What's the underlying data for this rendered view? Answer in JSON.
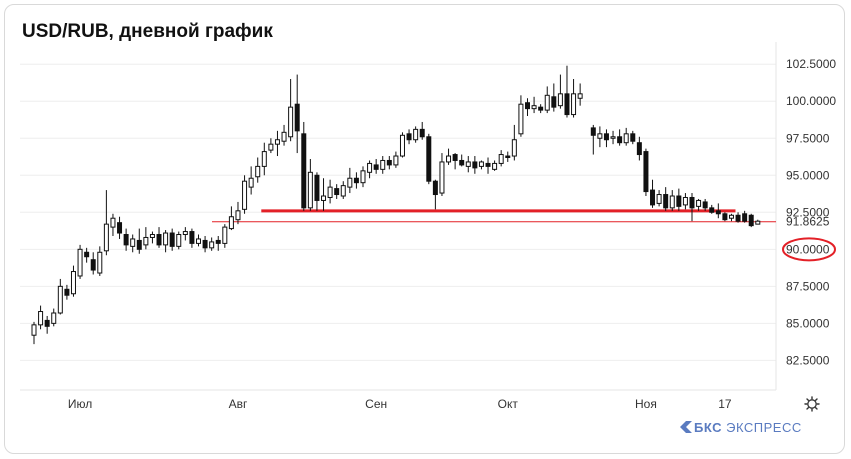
{
  "title": "USD/RUB, дневной график",
  "brand": {
    "icon": "bcs-logo-icon",
    "name": "БКС",
    "suffix": "ЭКСПРЕСС"
  },
  "settings_icon": "gear-icon",
  "colors": {
    "up": "#ffffff",
    "down": "#111111",
    "support": "#e32027",
    "grid": "#eeeeee"
  },
  "chart_data": {
    "type": "candlestick",
    "title": "USD/RUB, дневной график",
    "ylim": [
      80.5,
      104
    ],
    "y_ticks": [
      82.5,
      85,
      87.5,
      90,
      92.5,
      95,
      97.5,
      100,
      102.5
    ],
    "y_tick_labels": [
      "82.5000",
      "85.0000",
      "87.5000",
      "90.0000",
      "92.5000",
      "95.0000",
      "97.5000",
      "100.0000",
      "102.5000"
    ],
    "x_ticks": [
      {
        "label": "Июл",
        "index": 7
      },
      {
        "label": "Авг",
        "index": 31
      },
      {
        "label": "Сен",
        "index": 52
      },
      {
        "label": "Окт",
        "index": 72
      },
      {
        "label": "Ноя",
        "index": 93
      },
      {
        "label": "17",
        "index": 105
      }
    ],
    "price_label": "91.8625",
    "last_price": 91.8625,
    "highlighted_level": {
      "value": 90.0,
      "label": "90.0000"
    },
    "support_line": {
      "value": 92.6,
      "from_index": 35,
      "to_index": 106
    },
    "candles": [
      [
        84.2,
        84.9,
        83.6,
        85.1
      ],
      [
        84.9,
        85.8,
        84.6,
        86.2
      ],
      [
        85.2,
        84.8,
        84.3,
        85.5
      ],
      [
        85.0,
        85.7,
        84.8,
        86.0
      ],
      [
        85.7,
        87.5,
        85.6,
        88.0
      ],
      [
        87.3,
        86.9,
        86.6,
        87.6
      ],
      [
        87.0,
        88.5,
        86.8,
        88.9
      ],
      [
        88.2,
        90.0,
        88.0,
        90.3
      ],
      [
        89.8,
        89.5,
        89.1,
        90.1
      ],
      [
        89.3,
        88.6,
        88.3,
        89.8
      ],
      [
        88.4,
        89.8,
        88.2,
        90.2
      ],
      [
        89.9,
        91.7,
        89.6,
        94.0
      ],
      [
        91.5,
        92.1,
        90.9,
        92.4
      ],
      [
        91.8,
        91.1,
        90.7,
        92.2
      ],
      [
        91.0,
        90.3,
        89.9,
        91.4
      ],
      [
        90.2,
        90.7,
        89.8,
        91.0
      ],
      [
        90.6,
        90.0,
        89.7,
        91.4
      ],
      [
        90.3,
        90.8,
        90.0,
        91.5
      ],
      [
        90.8,
        91.0,
        90.4,
        91.2
      ],
      [
        91.0,
        90.3,
        90.1,
        91.5
      ],
      [
        90.3,
        91.1,
        89.8,
        91.3
      ],
      [
        91.1,
        90.2,
        89.9,
        91.4
      ],
      [
        90.2,
        91.0,
        90.0,
        91.2
      ],
      [
        91.0,
        91.2,
        90.6,
        91.5
      ],
      [
        91.2,
        90.4,
        90.1,
        91.4
      ],
      [
        90.4,
        90.7,
        90.2,
        91.0
      ],
      [
        90.6,
        90.1,
        89.8,
        90.9
      ],
      [
        90.1,
        90.5,
        89.9,
        90.8
      ],
      [
        90.6,
        90.4,
        89.9,
        90.9
      ],
      [
        90.4,
        91.5,
        90.1,
        91.7
      ],
      [
        91.4,
        92.2,
        91.3,
        92.9
      ],
      [
        92.0,
        92.6,
        91.7,
        93.2
      ],
      [
        92.7,
        94.6,
        92.4,
        95.0
      ],
      [
        94.2,
        94.8,
        93.7,
        95.6
      ],
      [
        94.9,
        95.6,
        94.5,
        96.2
      ],
      [
        95.6,
        96.6,
        95.0,
        97.2
      ],
      [
        96.7,
        97.1,
        96.5,
        97.5
      ],
      [
        97.1,
        97.4,
        96.3,
        98.0
      ],
      [
        97.3,
        97.9,
        97.0,
        98.4
      ],
      [
        97.6,
        99.6,
        97.3,
        101.5
      ],
      [
        99.8,
        98.0,
        96.5,
        101.8
      ],
      [
        97.8,
        92.8,
        92.6,
        98.6
      ],
      [
        92.8,
        95.2,
        92.6,
        96.1
      ],
      [
        95.0,
        93.3,
        92.6,
        95.2
      ],
      [
        93.3,
        93.6,
        92.6,
        94.8
      ],
      [
        93.5,
        94.2,
        93.1,
        94.7
      ],
      [
        94.1,
        93.7,
        93.4,
        94.4
      ],
      [
        93.6,
        94.3,
        93.4,
        94.6
      ],
      [
        94.2,
        94.8,
        93.8,
        95.5
      ],
      [
        94.8,
        94.5,
        94.1,
        95.2
      ],
      [
        94.5,
        95.3,
        94.2,
        95.6
      ],
      [
        95.2,
        95.8,
        94.8,
        96.0
      ],
      [
        95.7,
        95.4,
        95.1,
        96.1
      ],
      [
        95.4,
        96.0,
        95.1,
        96.3
      ],
      [
        96.0,
        95.7,
        95.4,
        96.3
      ],
      [
        95.7,
        96.3,
        95.5,
        96.6
      ],
      [
        96.3,
        97.7,
        96.2,
        97.9
      ],
      [
        97.8,
        97.4,
        97.1,
        98.1
      ],
      [
        97.4,
        98.1,
        97.2,
        98.3
      ],
      [
        98.1,
        97.6,
        97.4,
        98.6
      ],
      [
        97.6,
        94.6,
        94.4,
        97.8
      ],
      [
        94.6,
        93.7,
        92.7,
        94.7
      ],
      [
        93.8,
        95.9,
        93.6,
        96.5
      ],
      [
        95.9,
        96.3,
        95.7,
        96.8
      ],
      [
        96.4,
        96.0,
        95.4,
        96.5
      ],
      [
        96.0,
        95.7,
        95.6,
        96.4
      ],
      [
        95.6,
        95.9,
        95.2,
        96.3
      ],
      [
        95.9,
        95.5,
        95.1,
        96.3
      ],
      [
        95.6,
        95.9,
        95.4,
        96.0
      ],
      [
        95.8,
        95.6,
        95.1,
        96.2
      ],
      [
        95.4,
        95.8,
        95.3,
        96.0
      ],
      [
        95.8,
        96.4,
        95.6,
        96.7
      ],
      [
        96.3,
        96.2,
        95.9,
        96.6
      ],
      [
        96.3,
        97.4,
        96.0,
        98.4
      ],
      [
        97.8,
        99.8,
        97.6,
        100.4
      ],
      [
        99.9,
        99.5,
        99.0,
        100.2
      ],
      [
        99.5,
        99.7,
        99.2,
        100.3
      ],
      [
        99.6,
        99.4,
        99.2,
        99.8
      ],
      [
        99.4,
        100.4,
        99.2,
        101.0
      ],
      [
        100.3,
        99.6,
        99.3,
        101.2
      ],
      [
        99.7,
        100.5,
        99.5,
        101.8
      ],
      [
        100.5,
        99.1,
        98.9,
        102.4
      ],
      [
        99.1,
        100.5,
        98.9,
        101.5
      ],
      [
        100.2,
        100.5,
        99.7,
        101.2
      ],
      [
        null,
        null,
        null,
        null
      ],
      [
        98.2,
        97.7,
        96.4,
        98.4
      ],
      [
        97.5,
        97.8,
        96.9,
        98.3
      ],
      [
        97.8,
        97.4,
        96.9,
        98.1
      ],
      [
        97.5,
        97.6,
        97.1,
        98.0
      ],
      [
        97.6,
        97.2,
        97.0,
        98.1
      ],
      [
        97.2,
        97.8,
        97.0,
        98.2
      ],
      [
        97.8,
        97.3,
        97.1,
        98.0
      ],
      [
        97.2,
        96.4,
        96.0,
        97.6
      ],
      [
        96.6,
        93.9,
        93.6,
        96.8
      ],
      [
        94.0,
        93.0,
        92.8,
        94.7
      ],
      [
        93.1,
        93.7,
        92.9,
        94.0
      ],
      [
        93.7,
        92.8,
        92.6,
        94.2
      ],
      [
        92.8,
        93.6,
        92.6,
        94.0
      ],
      [
        93.6,
        92.9,
        92.6,
        94.1
      ],
      [
        93.0,
        93.5,
        92.7,
        93.8
      ],
      [
        93.5,
        92.8,
        91.9,
        93.8
      ],
      [
        92.9,
        93.3,
        92.6,
        93.4
      ],
      [
        93.2,
        92.8,
        92.6,
        93.4
      ],
      [
        92.8,
        92.5,
        92.4,
        93.0
      ],
      [
        92.6,
        92.4,
        92.1,
        93.1
      ],
      [
        92.4,
        92.0,
        91.9,
        92.5
      ],
      [
        92.1,
        92.3,
        91.9,
        92.4
      ],
      [
        92.3,
        91.9,
        91.8,
        92.5
      ],
      [
        92.4,
        91.9,
        91.8,
        92.6
      ],
      [
        92.3,
        91.6,
        91.5,
        92.4
      ],
      [
        91.7,
        91.9,
        91.7,
        92.0
      ]
    ]
  }
}
